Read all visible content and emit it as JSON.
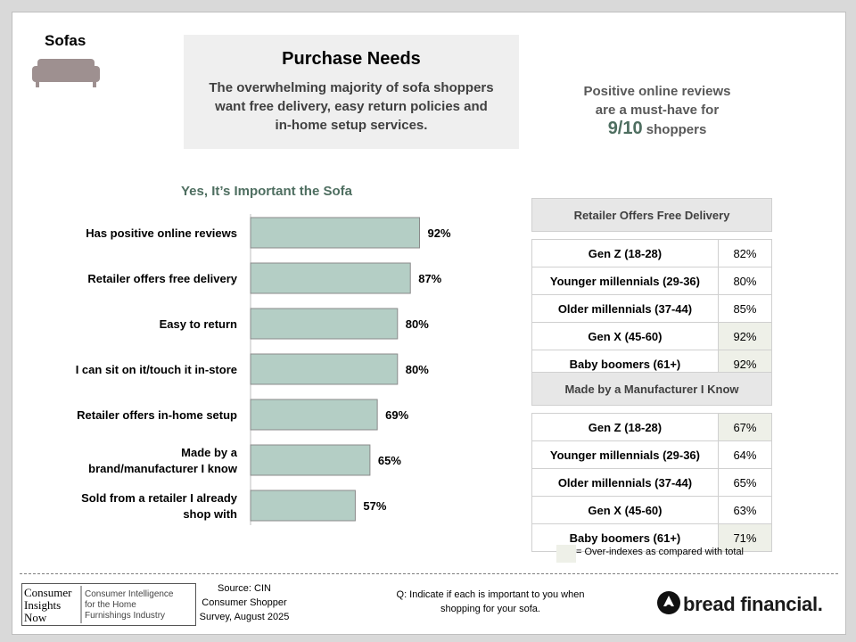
{
  "category": "Sofas",
  "header": {
    "title": "Purchase Needs",
    "subtitle": "The overwhelming majority of sofa shoppers want free delivery, easy return policies and in-home setup services."
  },
  "callout": {
    "line1": "Positive online reviews",
    "line2": "are a must-have for",
    "highlight": "9/10",
    "line3": "shoppers"
  },
  "chart_data": {
    "type": "bar",
    "orientation": "horizontal",
    "title": "Yes, It’s Important the Sofa",
    "categories": [
      [
        "Has positive online reviews"
      ],
      [
        "Retailer offers free delivery"
      ],
      [
        "Easy to return"
      ],
      [
        "I can sit on it/touch it in-store"
      ],
      [
        "Retailer offers in-home setup"
      ],
      [
        "Made by a",
        "brand/manufacturer I know"
      ],
      [
        "Sold from a retailer I already",
        "shop with"
      ]
    ],
    "values": [
      92,
      87,
      80,
      80,
      69,
      65,
      57
    ],
    "value_suffix": "%",
    "xlim": [
      0,
      100
    ],
    "grid": false,
    "bar_color": "#b4cec5",
    "bar_border": "#8a8a8a"
  },
  "tables": [
    {
      "title": "Retailer Offers Free Delivery",
      "rows": [
        {
          "label": "Gen Z (18-28)",
          "value": "82%",
          "highlight": false
        },
        {
          "label": "Younger millennials (29-36)",
          "value": "80%",
          "highlight": false
        },
        {
          "label": "Older millennials (37-44)",
          "value": "85%",
          "highlight": false
        },
        {
          "label": "Gen X (45-60)",
          "value": "92%",
          "highlight": true
        },
        {
          "label": "Baby boomers (61+)",
          "value": "92%",
          "highlight": true
        }
      ]
    },
    {
      "title": "Made by a Manufacturer I Know",
      "rows": [
        {
          "label": "Gen Z (18-28)",
          "value": "67%",
          "highlight": true
        },
        {
          "label": "Younger millennials (29-36)",
          "value": "64%",
          "highlight": false
        },
        {
          "label": "Older millennials (37-44)",
          "value": "65%",
          "highlight": false
        },
        {
          "label": "Gen X (45-60)",
          "value": "63%",
          "highlight": false
        },
        {
          "label": "Baby boomers (61+)",
          "value": "71%",
          "highlight": true
        }
      ]
    }
  ],
  "legend": {
    "text": "= Over-indexes as compared with total",
    "color": "#eef0e8"
  },
  "footer": {
    "logo_left": [
      "Consumer",
      "Insights",
      "Now"
    ],
    "logo_right": [
      "Consumer Intelligence",
      "for the Home",
      "Furnishings Industry"
    ],
    "source": [
      "Source: CIN",
      "Consumer Shopper",
      "Survey, August 2025"
    ],
    "question": [
      "Q: Indicate if each is important to you when",
      "shopping for your sofa."
    ],
    "brand": "bread financial."
  },
  "colors": {
    "accent_green": "#4e6e60",
    "logo_red": "#c0272d"
  }
}
